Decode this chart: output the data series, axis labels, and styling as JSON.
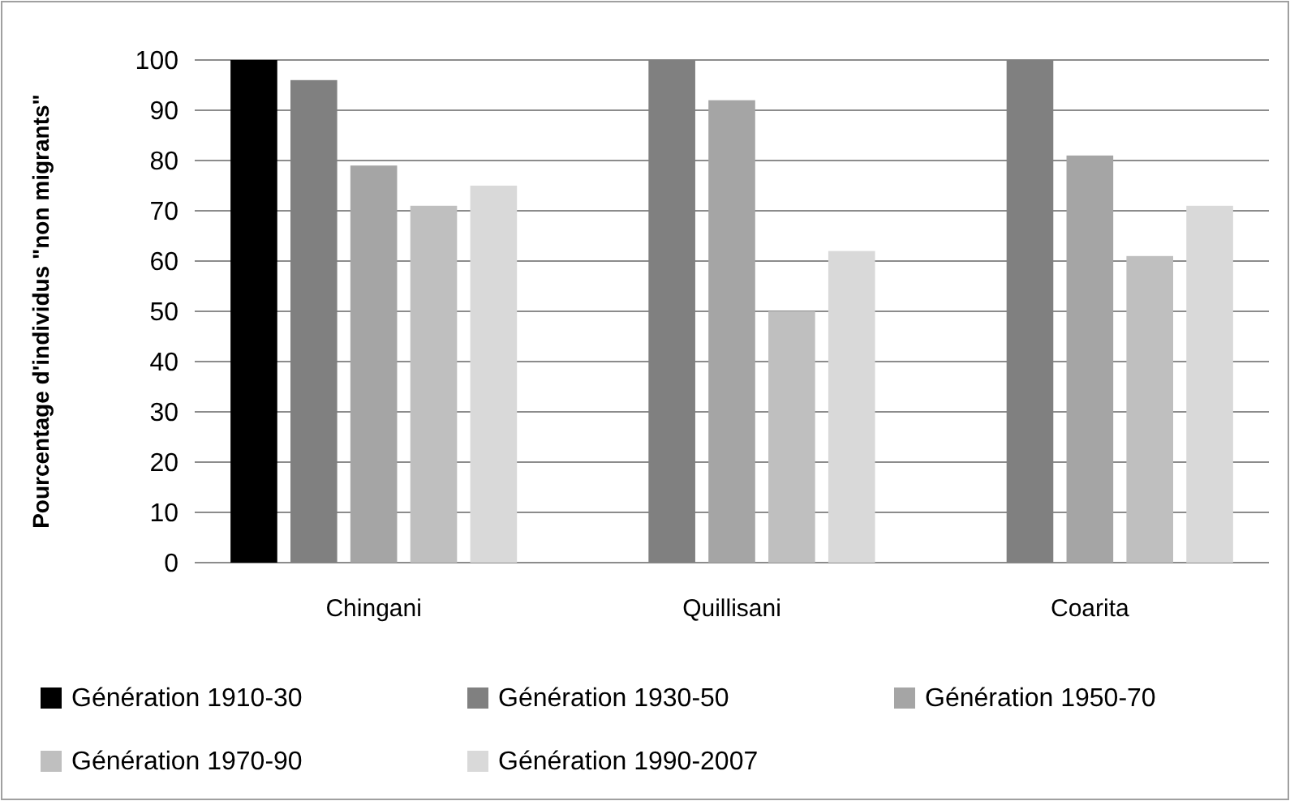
{
  "chart_data": {
    "type": "bar",
    "ylabel": "Pourcentage d'individus \"non migrants\"",
    "categories": [
      "Chingani",
      "Quillisani",
      "Coarita"
    ],
    "series": [
      {
        "name": "Génération 1910-30",
        "color": "#000000",
        "values": [
          100,
          null,
          null
        ]
      },
      {
        "name": "Génération 1930-50",
        "color": "#808080",
        "values": [
          96,
          100,
          100
        ]
      },
      {
        "name": "Génération 1950-70",
        "color": "#a5a5a5",
        "values": [
          79,
          92,
          81
        ]
      },
      {
        "name": "Génération 1970-90",
        "color": "#bfbfbf",
        "values": [
          71,
          50,
          61
        ]
      },
      {
        "name": "Génération 1990-2007",
        "color": "#d9d9d9",
        "values": [
          75,
          62,
          71
        ]
      }
    ],
    "ylim": [
      0,
      100
    ],
    "yticks": [
      0,
      10,
      20,
      30,
      40,
      50,
      60,
      70,
      80,
      90,
      100
    ],
    "grid": "y",
    "legend": "bottom"
  }
}
